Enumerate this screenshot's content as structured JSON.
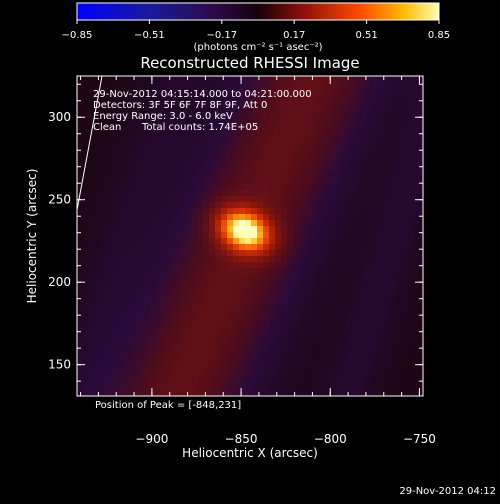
{
  "chart_data": {
    "type": "heatmap",
    "title": "Reconstructed RHESSI Image",
    "xlabel": "Heliocentric X (arcsec)",
    "ylabel": "Heliocentric Y (arcsec)",
    "xlim": [
      -942,
      -748
    ],
    "ylim": [
      131,
      325
    ],
    "x_ticks": [
      -900,
      -850,
      -800,
      -750
    ],
    "x_tick_labels": [
      "−900",
      "−850",
      "−800",
      "−750"
    ],
    "y_ticks": [
      150,
      200,
      250,
      300
    ],
    "y_tick_labels": [
      "150",
      "200",
      "250",
      "300"
    ],
    "annotations": {
      "time_range": "29-Nov-2012 04:15:14.000 to 04:21:00.000",
      "detectors": "Detectors: 3F 5F 6F 7F 8F 9F, Att 0",
      "energy_range": "Energy Range: 3.0 - 6.0 keV",
      "algorithm": "Clean",
      "total_counts": "Total counts: 1.74E+05",
      "peak_position": "Position of Peak = [-848,231]"
    },
    "peak": {
      "x": -848,
      "y": 231
    },
    "colorbar": {
      "range": [
        -0.85,
        0.85
      ],
      "ticks": [
        -0.85,
        -0.51,
        -0.17,
        0.17,
        0.51,
        0.85
      ],
      "tick_labels": [
        "−0.85",
        "−0.51",
        "−0.17",
        "0.17",
        "0.51",
        "0.85"
      ],
      "units": "(photons cm⁻² s⁻¹ asec⁻²)"
    },
    "grid": false
  },
  "footer": {
    "timestamp": "29-Nov-2012 04:12"
  }
}
